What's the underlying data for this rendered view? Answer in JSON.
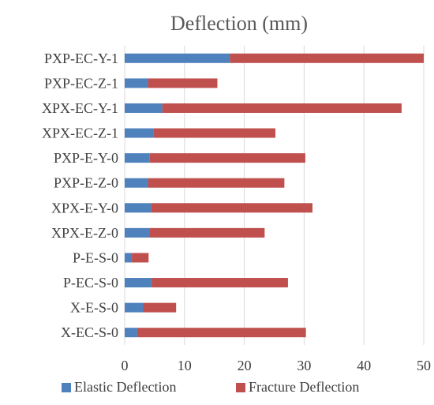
{
  "chart_data": {
    "type": "bar",
    "orientation": "horizontal",
    "stacked": true,
    "title": "Deflection (mm)",
    "xlabel": "",
    "ylabel": "",
    "categories": [
      "PXP-EC-Y-1",
      "PXP-EC-Z-1",
      "XPX-EC-Y-1",
      "XPX-EC-Z-1",
      "PXP-E-Y-0",
      "PXP-E-Z-0",
      "XPX-E-Y-0",
      "XPX-E-Z-0",
      "P-E-S-0",
      "P-EC-S-0",
      "X-E-S-0",
      "X-EC-S-0"
    ],
    "series": [
      {
        "name": "Elastic Deflection",
        "color": "#4f81bd",
        "values": [
          17.6,
          3.9,
          6.3,
          4.8,
          4.2,
          3.9,
          4.4,
          4.1,
          1.2,
          4.5,
          3.1,
          2.1
        ]
      },
      {
        "name": "Fracture Deflection",
        "color": "#c0504d",
        "values": [
          32.4,
          11.6,
          40.0,
          20.4,
          26.0,
          22.8,
          27.0,
          19.3,
          2.8,
          22.8,
          5.5,
          28.2
        ]
      }
    ],
    "xlim": [
      0,
      50
    ],
    "xticks": [
      0,
      10,
      20,
      30,
      40,
      50
    ],
    "grid": true,
    "legend": "bottom"
  }
}
